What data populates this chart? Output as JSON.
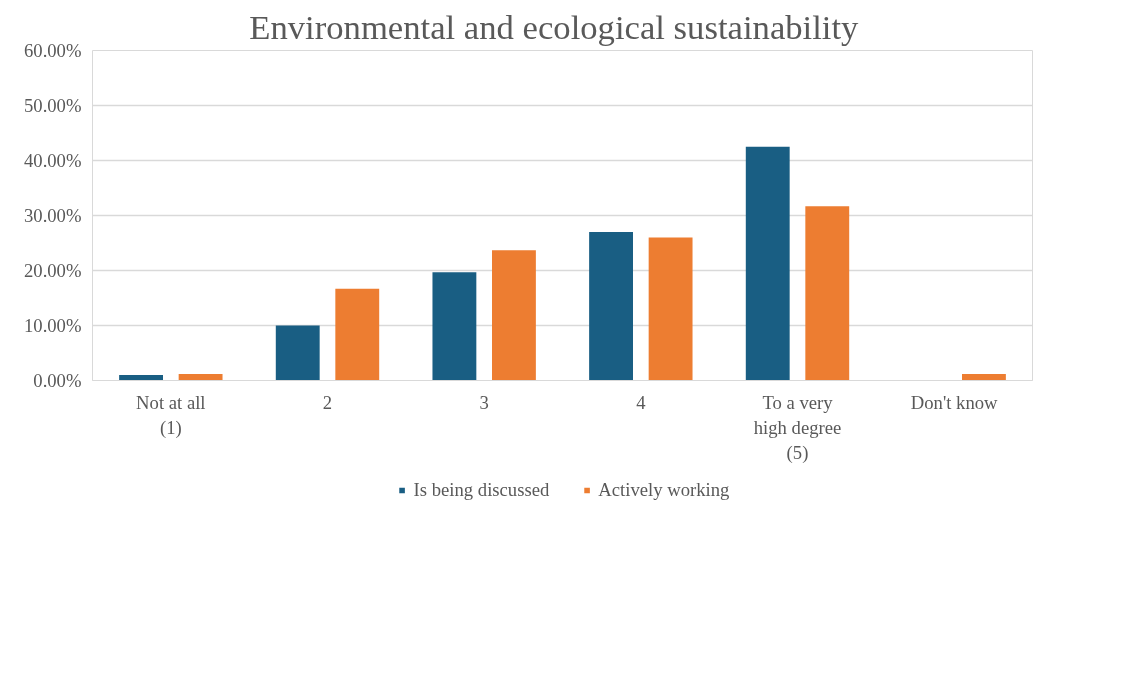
{
  "chart_data": {
    "type": "bar",
    "title": "Environmental  and ecological  sustainability",
    "categories": [
      "Not at all (1)",
      "2",
      "3",
      "4",
      "To a very high degree (5)",
      "Don't know"
    ],
    "series": [
      {
        "name": "Is being discussed",
        "color": "#195e83",
        "values": [
          1.0,
          10.0,
          19.7,
          27.0,
          42.5,
          0
        ]
      },
      {
        "name": "Actively working",
        "color": "#ed7d31",
        "values": [
          1.2,
          16.7,
          23.7,
          26.0,
          31.7,
          1.2
        ]
      }
    ],
    "ylim": [
      0,
      60
    ],
    "yticks": [
      {
        "value": 0,
        "label": "0.00%"
      },
      {
        "value": 10,
        "label": "10.00%"
      },
      {
        "value": 20,
        "label": "20.00%"
      },
      {
        "value": 30,
        "label": "30.00%"
      },
      {
        "value": 40,
        "label": "40.00%"
      },
      {
        "value": 50,
        "label": "50.00%"
      },
      {
        "value": 60,
        "label": "60.00%"
      }
    ],
    "grid": "y",
    "legend": "bottom"
  }
}
